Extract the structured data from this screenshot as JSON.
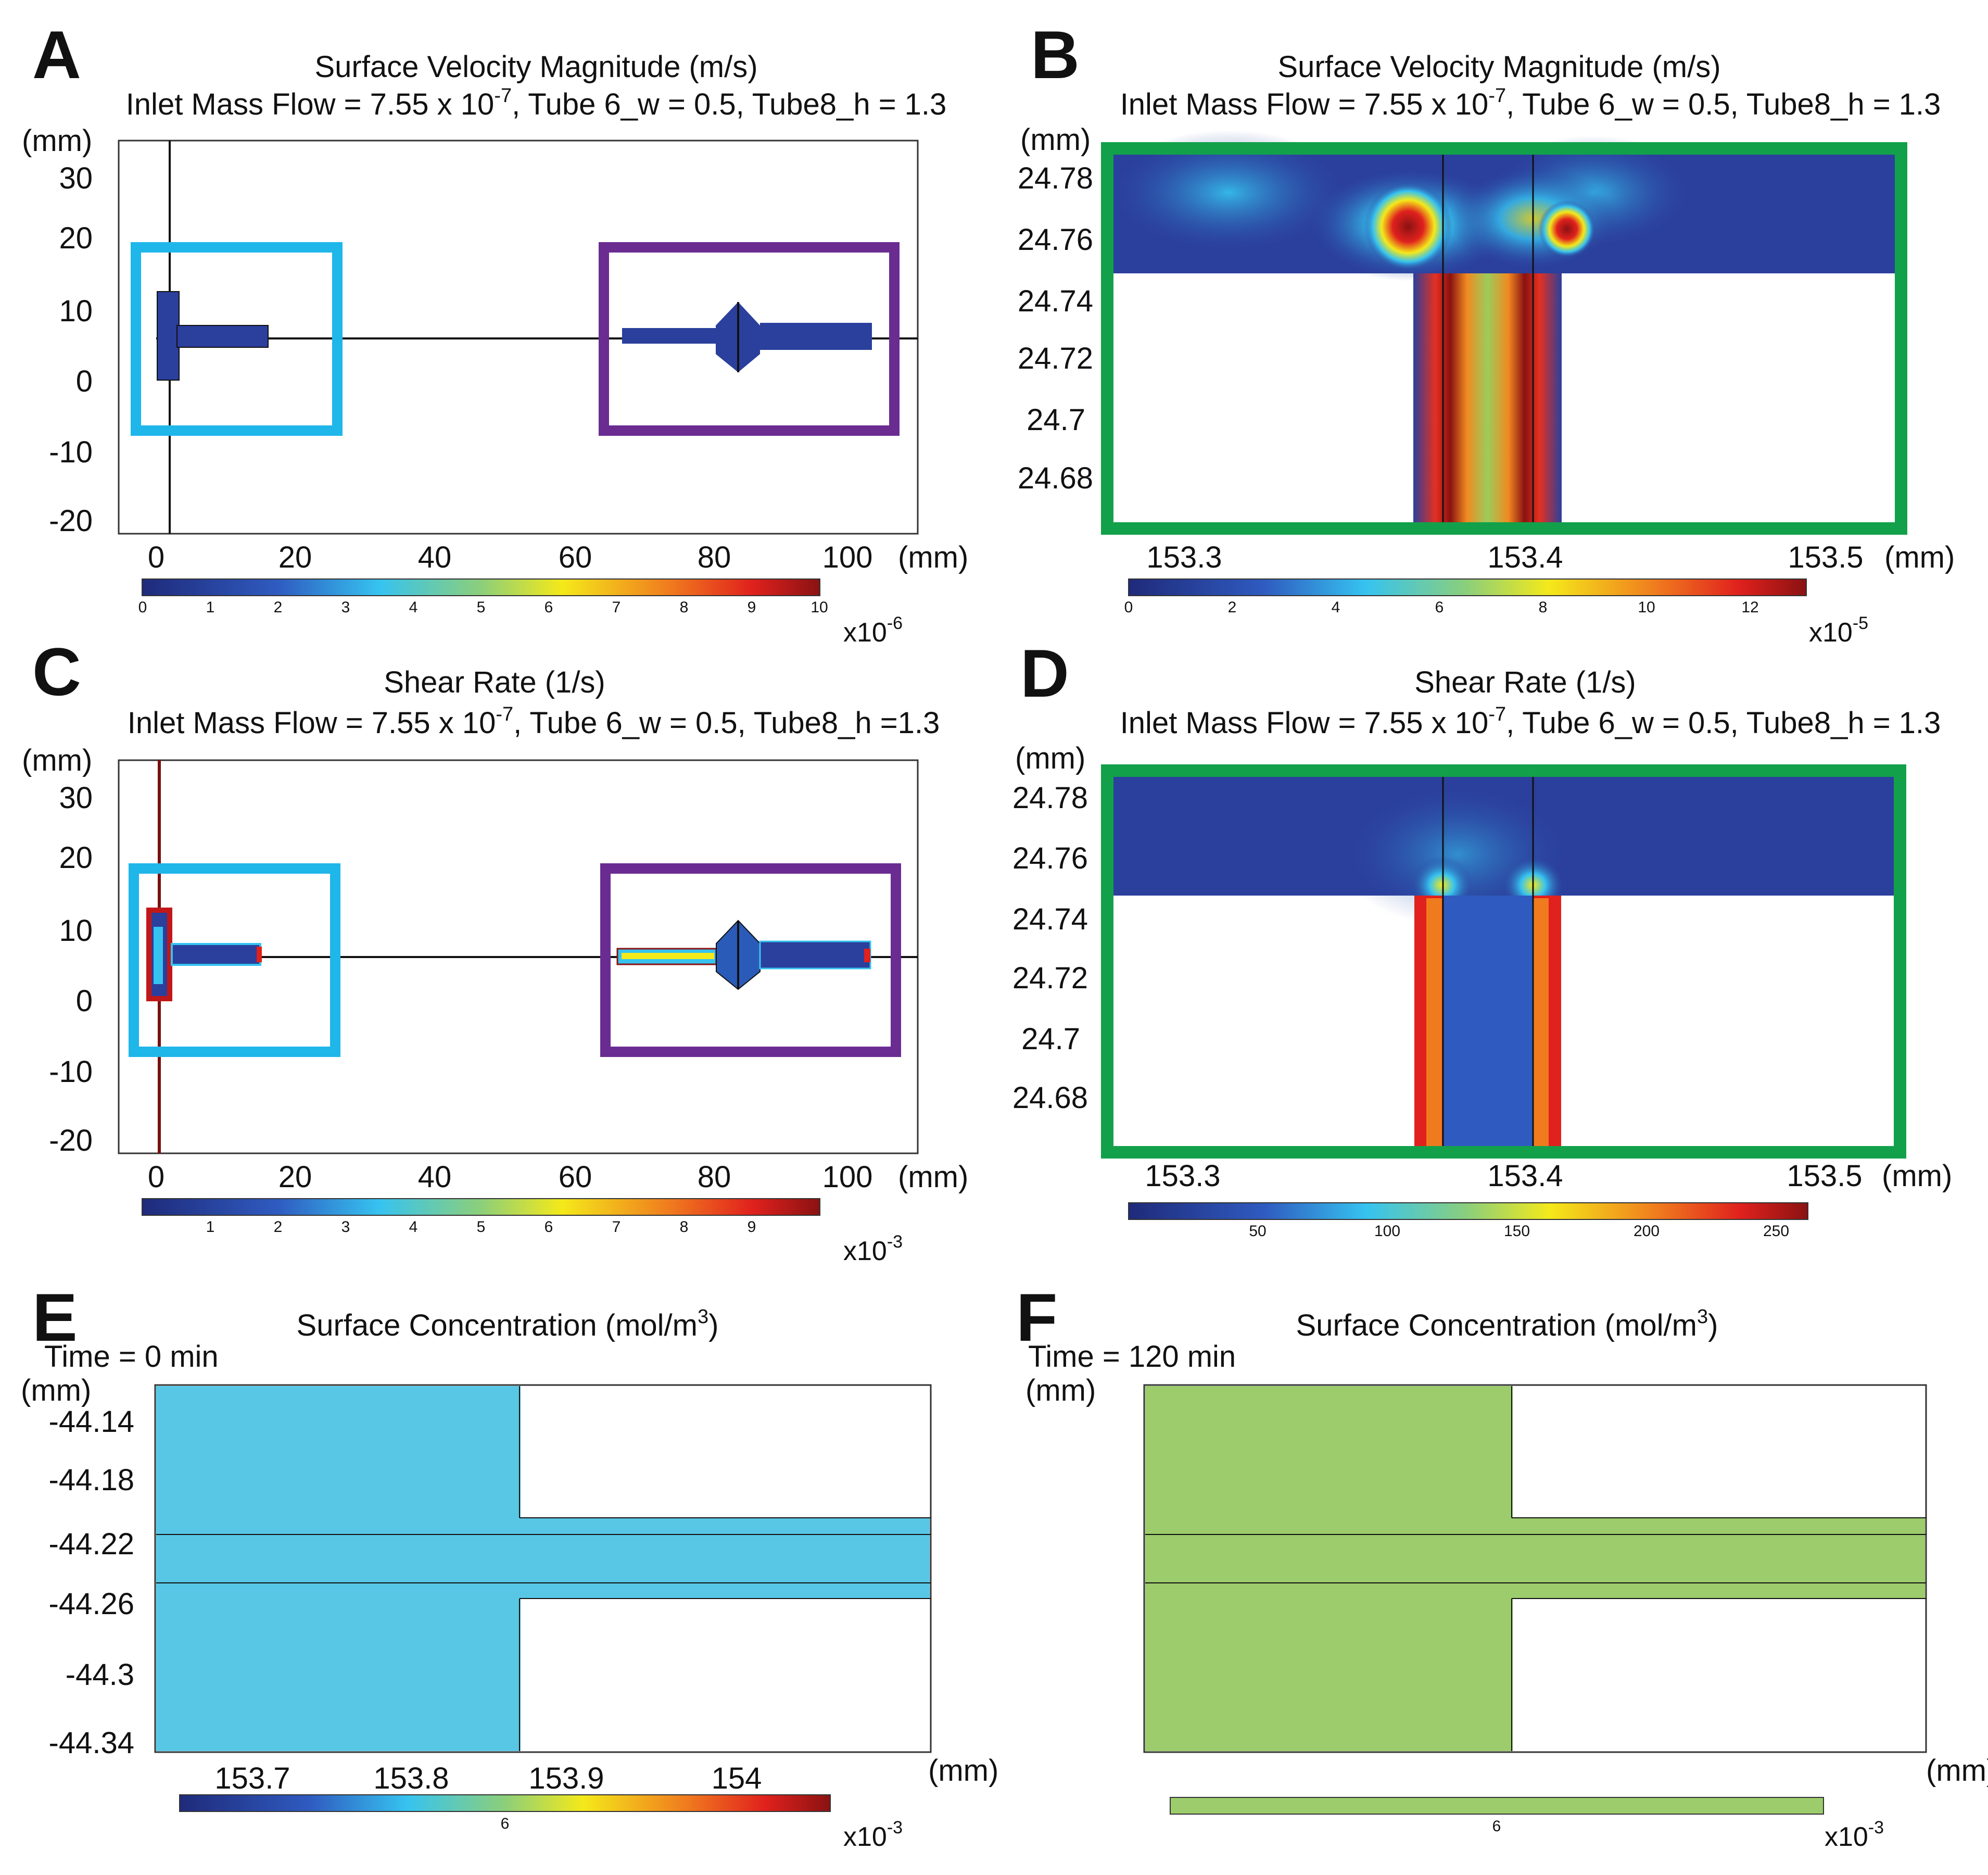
{
  "palette": {
    "navy": "#283a92",
    "cyan": "#36c3f0",
    "purple": "#6a2c91",
    "green": "#12a14a",
    "conc_blue": "#58c7e6",
    "conc_green": "#9ccc6c"
  },
  "panels": {
    "A": {
      "label": "A",
      "title": "Surface Velocity Magnitude (m/s)",
      "sub_pre": "Inlet Mass Flow = 7.55 x 10",
      "sub_sup": "-7",
      "sub_post": ", Tube 6_w = 0.5, Tube8_h = 1.3",
      "y_unit": "(mm)",
      "x_unit": "(mm)",
      "y_ticks": [
        "30",
        "20",
        "10",
        "0",
        "-10",
        "-20"
      ],
      "x_ticks": [
        "0",
        "20",
        "40",
        "60",
        "80",
        "100"
      ],
      "cb_ticks": [
        "0",
        "1",
        "2",
        "3",
        "4",
        "5",
        "6",
        "7",
        "8",
        "9",
        "10"
      ],
      "mult_base": "x10",
      "mult_exp": "-6"
    },
    "B": {
      "label": "B",
      "title": "Surface Velocity Magnitude (m/s)",
      "sub_pre": "Inlet Mass Flow = 7.55 x 10",
      "sub_sup": "-7",
      "sub_post": ", Tube 6_w = 0.5, Tube8_h = 1.3",
      "y_unit": "(mm)",
      "x_unit": "(mm)",
      "y_ticks": [
        "24.78",
        "24.76",
        "24.74",
        "24.72",
        "24.7",
        "24.68"
      ],
      "x_ticks": [
        "153.3",
        "153.4",
        "153.5"
      ],
      "cb_ticks": [
        "0",
        "2",
        "4",
        "6",
        "8",
        "10",
        "12"
      ],
      "mult_base": "x10",
      "mult_exp": "-5"
    },
    "C": {
      "label": "C",
      "title": "Shear Rate (1/s)",
      "sub_pre": "Inlet Mass Flow = 7.55 x 10",
      "sub_sup": "-7",
      "sub_post": ", Tube 6_w = 0.5, Tube8_h =1.3",
      "y_unit": "(mm)",
      "x_unit": "(mm)",
      "y_ticks": [
        "30",
        "20",
        "10",
        "0",
        "-10",
        "-20"
      ],
      "x_ticks": [
        "0",
        "20",
        "40",
        "60",
        "80",
        "100"
      ],
      "cb_ticks": [
        "1",
        "2",
        "3",
        "4",
        "5",
        "6",
        "7",
        "8",
        "9"
      ],
      "mult_base": "x10",
      "mult_exp": "-3"
    },
    "D": {
      "label": "D",
      "title": "Shear Rate (1/s)",
      "sub_pre": "Inlet Mass Flow = 7.55 x 10",
      "sub_sup": "-7",
      "sub_post": ", Tube 6_w = 0.5, Tube8_h = 1.3",
      "y_unit": "(mm)",
      "x_unit": "(mm)",
      "y_ticks": [
        "24.78",
        "24.76",
        "24.74",
        "24.72",
        "24.7",
        "24.68"
      ],
      "x_ticks": [
        "153.3",
        "153.4",
        "153.5"
      ],
      "cb_ticks": [
        "50",
        "100",
        "150",
        "200",
        "250"
      ]
    },
    "E": {
      "label": "E",
      "title_pre": "Surface Concentration (mol/m",
      "title_sup": "3",
      "title_post": ")",
      "time": "Time = 0 min",
      "y_unit": "(mm)",
      "x_unit": "(mm)",
      "y_ticks": [
        "-44.14",
        "-44.18",
        "-44.22",
        "-44.26",
        "-44.3",
        "-44.34"
      ],
      "x_ticks": [
        "153.7",
        "153.8",
        "153.9",
        "154"
      ],
      "cb_ticks": [
        "6"
      ],
      "mult_base": "x10",
      "mult_exp": "-3"
    },
    "F": {
      "label": "F",
      "title_pre": "Surface Concentration (mol/m",
      "title_sup": "3",
      "title_post": ")",
      "time": "Time = 120 min",
      "y_unit": "(mm)",
      "x_unit": "(mm)",
      "cb_ticks": [
        "6"
      ],
      "mult_base": "x10",
      "mult_exp": "-3"
    }
  }
}
